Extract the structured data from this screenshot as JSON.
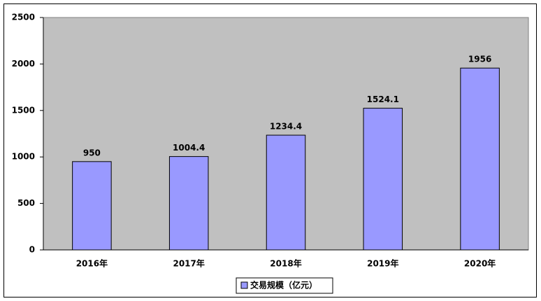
{
  "chart_data": {
    "type": "bar",
    "categories": [
      "2016年",
      "2017年",
      "2018年",
      "2019年",
      "2020年"
    ],
    "series": [
      {
        "name": "交易规模（亿元）",
        "color": "#9999ff",
        "values": [
          950,
          1004.4,
          1234.4,
          1524.1,
          1956
        ]
      }
    ],
    "ylim": [
      0,
      2500
    ],
    "yticks": [
      0,
      500,
      1000,
      1500,
      2000,
      2500
    ],
    "plot_background": "#c0c0c0"
  }
}
